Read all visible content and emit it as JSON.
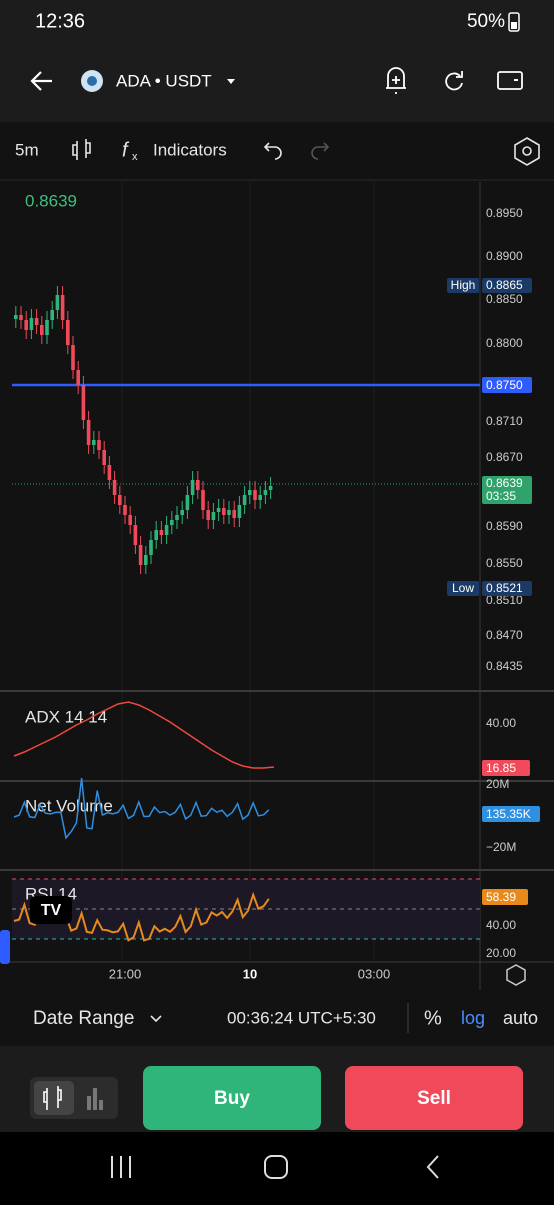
{
  "status": {
    "time": "12:36",
    "battery": "50%"
  },
  "header": {
    "pair": "ADA • USDT"
  },
  "toolbar": {
    "interval": "5m",
    "indicators": "Indicators"
  },
  "chart": {
    "last_price": "0.8639",
    "price_ticks": [
      "0.8950",
      "0.8900",
      "0.8850",
      "0.8800",
      "0.8710",
      "0.8670",
      "0.8590",
      "0.8550",
      "0.8510",
      "0.8470",
      "0.8435"
    ],
    "high_label": "High",
    "high_value": "0.8865",
    "low_label": "Low",
    "low_value": "0.8521",
    "line_value": "0.8750",
    "current_price": "0.8639",
    "countdown": "03:35"
  },
  "adx": {
    "title": "ADX 14 14",
    "tick": "40.00",
    "value": "16.85"
  },
  "net_volume": {
    "title": "Net Volume",
    "top_tick": "20M",
    "value": "135.35K",
    "bottom_tick": "−20M"
  },
  "rsi": {
    "title": "RSI 14",
    "value": "58.39",
    "ticks": [
      "40.00",
      "20.00"
    ]
  },
  "time_axis": [
    "21:00",
    "10",
    "03:00"
  ],
  "footer": {
    "date_range": "Date Range",
    "clock": "00:36:24 UTC+5:30",
    "percent": "%",
    "log": "log",
    "auto": "auto"
  },
  "actions": {
    "buy": "Buy",
    "sell": "Sell"
  }
}
